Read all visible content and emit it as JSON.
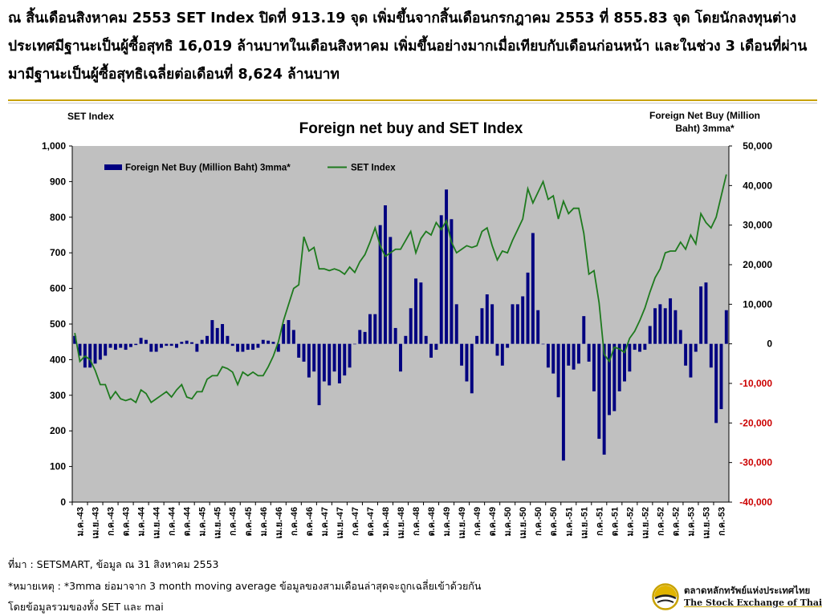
{
  "headline": "ณ สิ้นเดือนสิงหาคม 2553 SET Index ปิดที่ 913.19 จุด เพิ่มขึ้นจากสิ้นเดือนกรกฎาคม 2553 ที่ 855.83 จุด โดยนักลงทุนต่างประเทศมีฐานะเป็นผู้ซื้อสุทธิ 16,019 ล้านบาทในเดือนสิงหาคม เพิ่มขึ้นอย่างมากเมื่อเทียบกับเดือนก่อนหน้า และในช่วง 3 เดือนที่ผ่านมามีฐานะเป็นผู้ซื้อสุทธิเฉลี่ยต่อเดือนที่ 8,624 ล้านบาท",
  "colors": {
    "bar": "#000080",
    "line": "#1e7a1e",
    "plot_bg": "#c0c0c0",
    "right_axis": "#cc0000",
    "accent_rule": "#c8a200"
  },
  "chart_data": {
    "type": "bar+line",
    "title": "Foreign net buy and SET Index",
    "ylabel_left": "SET Index",
    "ylabel_right": "Foreign Net Buy (Million Baht) 3mma*",
    "ylim_left": [
      0,
      1000
    ],
    "ylim_right": [
      -40000,
      50000
    ],
    "yticks_left": [
      "0",
      "100",
      "200",
      "300",
      "400",
      "500",
      "600",
      "700",
      "800",
      "900",
      "1,000"
    ],
    "yticks_right": [
      "-40,000",
      "-30,000",
      "-20,000",
      "-10,000",
      "0",
      "10,000",
      "20,000",
      "30,000",
      "40,000",
      "50,000"
    ],
    "legend": {
      "position": "top-left",
      "entries": [
        "Foreign Net Buy (Million Baht) 3mma*",
        "SET Index"
      ]
    },
    "grid": false,
    "x_tick_labels": [
      "ม.ค.-43",
      "เม.ย.-43",
      "ก.ค.-43",
      "ต.ค.-43",
      "ม.ค.-44",
      "เม.ย.-44",
      "ก.ค.-44",
      "ต.ค.-44",
      "ม.ค.-45",
      "เม.ย.-45",
      "ก.ค.-45",
      "ต.ค.-45",
      "ม.ค.-46",
      "เม.ย.-46",
      "ก.ค.-46",
      "ต.ค.-46",
      "ม.ค.-47",
      "เม.ย.-47",
      "ก.ค.-47",
      "ต.ค.-47",
      "ม.ค.-48",
      "เม.ย.-48",
      "ก.ค.-48",
      "ต.ค.-48",
      "ม.ค.-49",
      "เม.ย.-49",
      "ก.ค.-49",
      "ต.ค.-49",
      "ม.ค.-50",
      "เม.ย.-50",
      "ก.ค.-50",
      "ต.ค.-50",
      "ม.ค.-51",
      "เม.ย.-51",
      "ก.ค.-51",
      "ต.ค.-51",
      "ม.ค.-52",
      "เม.ย.-52",
      "ก.ค.-52",
      "ต.ค.-52",
      "ม.ค.-53",
      "เม.ย.-53",
      "ก.ค.-53"
    ],
    "series": [
      {
        "name": "Foreign Net Buy (Million Baht) 3mma*",
        "kind": "bar",
        "axis": "right",
        "values": [
          2000,
          -3000,
          -6000,
          -6000,
          -5000,
          -4000,
          -3000,
          -1000,
          -1500,
          -1000,
          -1500,
          -800,
          -300,
          1500,
          1000,
          -2000,
          -2000,
          -1000,
          -500,
          -500,
          -1000,
          500,
          800,
          400,
          -2000,
          1000,
          2000,
          6000,
          4000,
          5000,
          2000,
          -500,
          -2000,
          -2000,
          -1500,
          -1500,
          -1000,
          1000,
          800,
          500,
          -2000,
          5000,
          6000,
          3500,
          -3500,
          -4500,
          -8500,
          -7000,
          -15500,
          -9500,
          -10500,
          -7000,
          -10000,
          -8000,
          -6000,
          0,
          3500,
          3000,
          7500,
          7500,
          30000,
          35000,
          27000,
          4000,
          -7000,
          2000,
          9000,
          16500,
          15500,
          2000,
          -3500,
          -1500,
          32500,
          39000,
          31500,
          10000,
          -5500,
          -9500,
          -12500,
          2000,
          9000,
          12500,
          10000,
          -3000,
          -5500,
          -1000,
          10000,
          10000,
          12000,
          18000,
          28000,
          8500,
          0,
          -6000,
          -7500,
          -13500,
          -29500,
          -5500,
          -6500,
          -5000,
          7000,
          -4500,
          -12000,
          -24000,
          -28000,
          -18000,
          -17000,
          -12000,
          -9500,
          -7000,
          -1500,
          -2000,
          -1500,
          4500,
          9000,
          10000,
          9000,
          11500,
          8500,
          3500,
          -5500,
          -8500,
          -2000,
          14500,
          15500,
          -6000,
          -20000,
          -16500,
          8500
        ]
      },
      {
        "name": "SET Index",
        "kind": "line",
        "axis": "left",
        "values": [
          475,
          395,
          410,
          400,
          370,
          330,
          330,
          290,
          310,
          290,
          285,
          290,
          280,
          315,
          305,
          280,
          290,
          300,
          310,
          295,
          315,
          330,
          295,
          290,
          310,
          310,
          345,
          355,
          355,
          380,
          375,
          365,
          330,
          365,
          355,
          365,
          355,
          355,
          380,
          410,
          450,
          510,
          555,
          600,
          610,
          745,
          705,
          715,
          655,
          655,
          650,
          655,
          650,
          640,
          660,
          645,
          675,
          695,
          730,
          770,
          720,
          690,
          700,
          710,
          710,
          735,
          760,
          700,
          740,
          760,
          750,
          785,
          765,
          790,
          730,
          700,
          710,
          720,
          715,
          720,
          760,
          770,
          720,
          680,
          705,
          700,
          735,
          765,
          795,
          880,
          840,
          870,
          900,
          850,
          860,
          795,
          845,
          810,
          825,
          825,
          755,
          640,
          650,
          560,
          415,
          395,
          435,
          430,
          420,
          460,
          480,
          510,
          545,
          590,
          630,
          655,
          700,
          705,
          705,
          730,
          710,
          750,
          725,
          810,
          785,
          770,
          800,
          860,
          920
        ]
      }
    ]
  },
  "footer": {
    "source": "ที่มา : SETSMART, ข้อมูล ณ 31 สิงหาคม 2553",
    "note": "*หมายเหตุ : *3mma ย่อมาจาก 3 month moving average ข้อมูลของสามเดือนล่าสุดจะถูกเฉลี่ยเข้าด้วยกัน",
    "note2": "โดยข้อมูลรวมของทั้ง SET และ mai"
  },
  "logo": {
    "name_th": "ตลาดหลักทรัพย์แห่งประเทศไทย",
    "name_en": "The Stock Exchange of Thailand",
    "icon": "set-emblem-icon"
  }
}
